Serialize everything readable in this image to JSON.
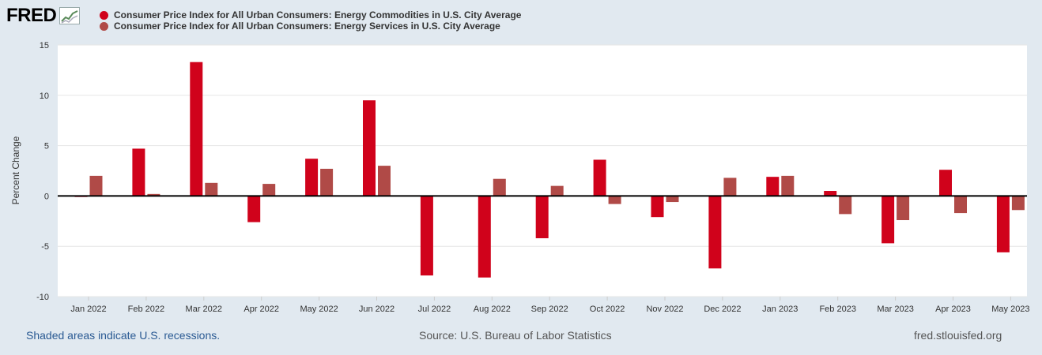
{
  "brand": {
    "logo_text": "FRED"
  },
  "footer": {
    "recession_note": "Shaded areas indicate U.S. recessions.",
    "source": "Source: U.S. Bureau of Labor Statistics",
    "site": "fred.stlouisfed.org"
  },
  "chart_data": {
    "type": "bar",
    "title": "",
    "xlabel": "",
    "ylabel": "Percent Change",
    "ylim": [
      -10,
      15
    ],
    "yticks": [
      -10,
      -5,
      0,
      5,
      10,
      15
    ],
    "grid": true,
    "legend_position": "top-left",
    "categories": [
      "Jan 2022",
      "Feb 2022",
      "Mar 2022",
      "Apr 2022",
      "May 2022",
      "Jun 2022",
      "Jul 2022",
      "Aug 2022",
      "Sep 2022",
      "Oct 2022",
      "Nov 2022",
      "Dec 2022",
      "Jan 2023",
      "Feb 2023",
      "Mar 2023",
      "Apr 2023",
      "May 2023"
    ],
    "series": [
      {
        "name": "Consumer Price Index for All Urban Consumers: Energy Commodities in U.S. City Average",
        "color": "#d0021b",
        "values": [
          -0.1,
          4.7,
          13.3,
          -2.6,
          3.7,
          9.5,
          -7.9,
          -8.1,
          -4.2,
          3.6,
          -2.1,
          -7.2,
          1.9,
          0.5,
          -4.7,
          2.6,
          -5.6
        ]
      },
      {
        "name": "Consumer Price Index for All Urban Consumers: Energy Services in U.S. City Average",
        "color": "#b04a47",
        "values": [
          2.0,
          0.2,
          1.3,
          1.2,
          2.7,
          3.0,
          0.0,
          1.7,
          1.0,
          -0.8,
          -0.6,
          1.8,
          2.0,
          -1.8,
          -2.4,
          -1.7,
          -1.4
        ]
      }
    ]
  }
}
